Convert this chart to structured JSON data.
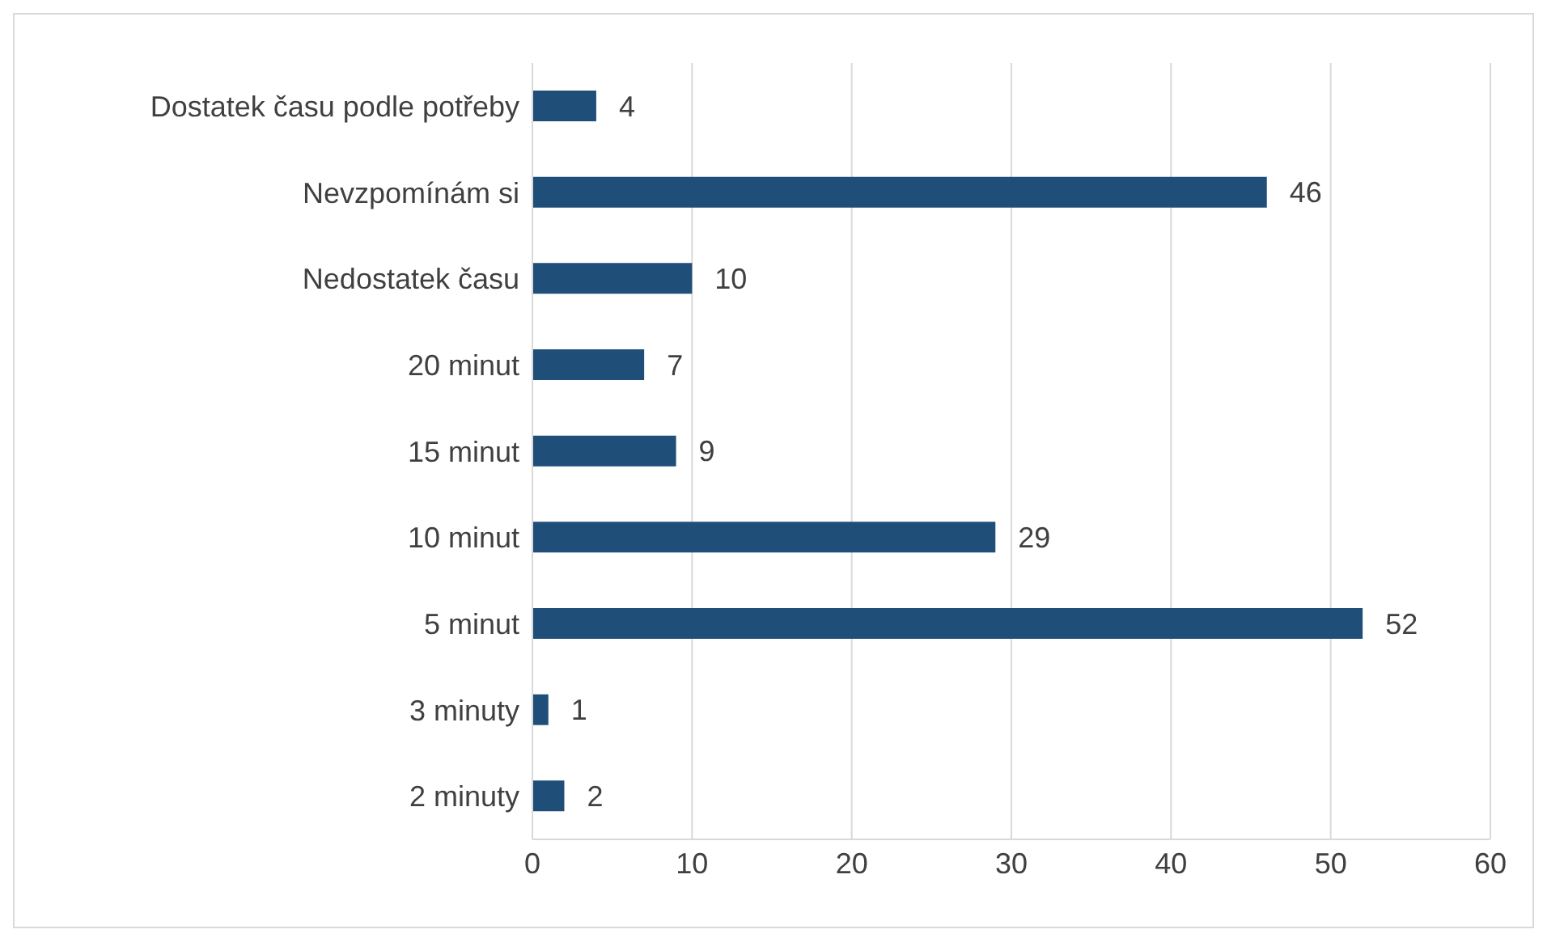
{
  "chart_data": {
    "type": "bar",
    "orientation": "horizontal",
    "categories": [
      "Dostatek času podle potřeby",
      "Nevzpomínám si",
      "Nedostatek času",
      "20 minut",
      "15 minut",
      "10 minut",
      "5 minut",
      "3 minuty",
      "2 minuty"
    ],
    "values": [
      4,
      46,
      10,
      7,
      9,
      29,
      52,
      1,
      2
    ],
    "color": "#1f4e79",
    "xlim": [
      0,
      60
    ],
    "xticks": [
      0,
      10,
      20,
      30,
      40,
      50,
      60
    ],
    "grid": "x",
    "data_labels": true,
    "legend": false
  }
}
